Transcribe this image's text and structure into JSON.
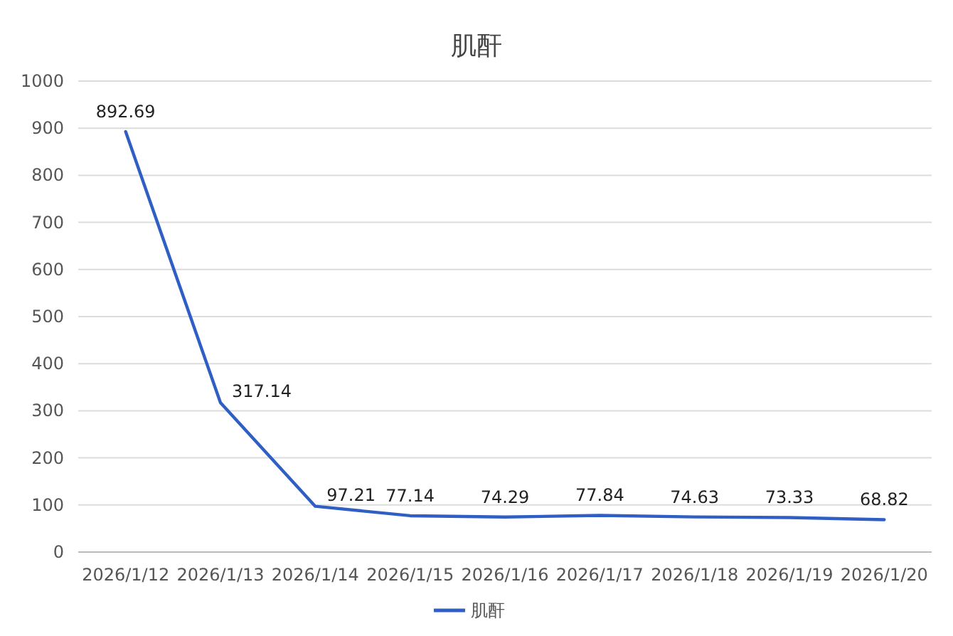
{
  "chart_data": {
    "type": "line",
    "title": "肌酐",
    "categories": [
      "2026/1/12",
      "2026/1/13",
      "2026/1/14",
      "2026/1/15",
      "2026/1/16",
      "2026/1/17",
      "2026/1/18",
      "2026/1/19",
      "2026/1/20"
    ],
    "series": [
      {
        "name": "肌酐",
        "color": "#2f5fc4",
        "values": [
          892.69,
          317.14,
          97.21,
          77.14,
          74.29,
          77.84,
          74.63,
          73.33,
          68.82
        ]
      }
    ],
    "ylim": [
      0,
      1000
    ],
    "yticks": [
      0,
      100,
      200,
      300,
      400,
      500,
      600,
      700,
      800,
      900,
      1000
    ],
    "grid": "y",
    "legend": "bottom",
    "data_labels": true,
    "marker": "none",
    "line_style": "solid"
  }
}
